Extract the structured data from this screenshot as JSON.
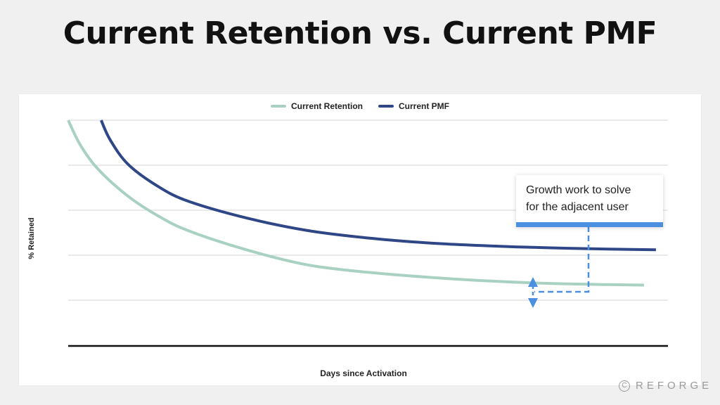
{
  "title": "Current Retention vs. Current PMF",
  "chart_data": {
    "type": "line",
    "xlabel": "Days since Activation",
    "ylabel": "% Retained",
    "grid": true,
    "legend_position": "top-center",
    "series": [
      {
        "name": "Current Retention",
        "color": "#a9d1c1",
        "x": [
          0,
          0.02,
          0.05,
          0.1,
          0.15,
          0.2,
          0.3,
          0.4,
          0.5,
          0.6,
          0.7,
          0.8,
          0.9,
          0.96
        ],
        "y": [
          1.0,
          0.9,
          0.8,
          0.69,
          0.61,
          0.55,
          0.47,
          0.41,
          0.38,
          0.36,
          0.345,
          0.335,
          0.33,
          0.328
        ]
      },
      {
        "name": "Current PMF",
        "color": "#2f4787",
        "x": [
          0.055,
          0.07,
          0.1,
          0.15,
          0.2,
          0.3,
          0.4,
          0.5,
          0.6,
          0.7,
          0.8,
          0.9,
          0.98
        ],
        "y": [
          1.0,
          0.92,
          0.82,
          0.73,
          0.67,
          0.6,
          0.55,
          0.52,
          0.5,
          0.488,
          0.48,
          0.475,
          0.472
        ]
      }
    ],
    "annotation": {
      "text_line1": "Growth work to solve",
      "text_line2": "for the adjacent user",
      "accent_color": "#4a8fe0"
    }
  },
  "brand": {
    "icon_glyph": "C",
    "name": "REFORGE"
  }
}
